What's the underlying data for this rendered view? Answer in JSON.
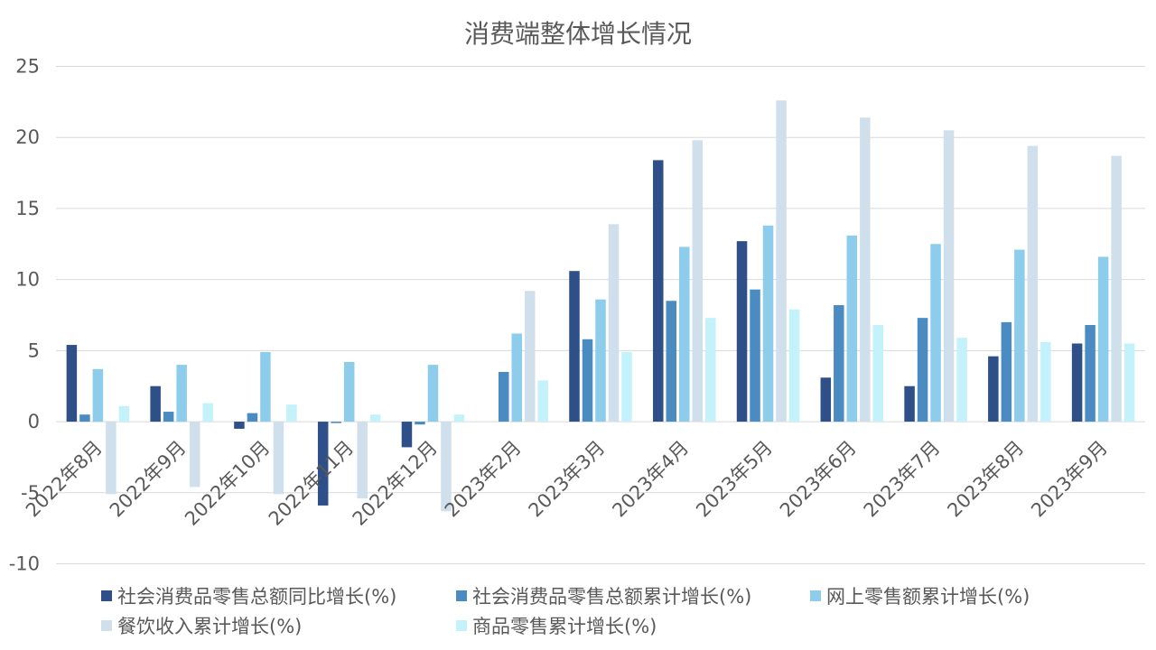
{
  "chart_data": {
    "type": "bar",
    "title": "消费端整体增长情况",
    "categories": [
      "2022年8月",
      "2022年9月",
      "2022年10月",
      "2022年11月",
      "2022年12月",
      "2023年2月",
      "2023年3月",
      "2023年4月",
      "2023年5月",
      "2023年6月",
      "2023年7月",
      "2023年8月",
      "2023年9月"
    ],
    "series": [
      {
        "name": "社会消费品零售总额同比增长(%)",
        "color": "#2f4f88",
        "values": [
          5.4,
          2.5,
          -0.5,
          -5.9,
          -1.8,
          null,
          10.6,
          18.4,
          12.7,
          3.1,
          2.5,
          4.6,
          5.5
        ]
      },
      {
        "name": "社会消费品零售总额累计增长(%)",
        "color": "#4a8bc2",
        "values": [
          0.5,
          0.7,
          0.6,
          -0.1,
          -0.2,
          3.5,
          5.8,
          8.5,
          9.3,
          8.2,
          7.3,
          7.0,
          6.8
        ]
      },
      {
        "name": "网上零售额累计增长(%)",
        "color": "#8dcdeb",
        "values": [
          3.7,
          4.0,
          4.9,
          4.2,
          4.0,
          6.2,
          8.6,
          12.3,
          13.8,
          13.1,
          12.5,
          12.1,
          11.6
        ]
      },
      {
        "name": "餐饮收入累计增长(%)",
        "color": "#cfe0ec",
        "values": [
          -5.1,
          -4.6,
          -5.1,
          -5.4,
          -6.3,
          9.2,
          13.9,
          19.8,
          22.6,
          21.4,
          20.5,
          19.4,
          18.7
        ]
      },
      {
        "name": "商品零售累计增长(%)",
        "color": "#c4f2fa",
        "values": [
          1.1,
          1.3,
          1.2,
          0.5,
          0.5,
          2.9,
          4.9,
          7.3,
          7.9,
          6.8,
          5.9,
          5.6,
          5.5
        ]
      }
    ],
    "ylim": [
      -10,
      25
    ],
    "yticks": [
      -10,
      -5,
      0,
      5,
      10,
      15,
      20,
      25
    ],
    "grid": true,
    "legend_position": "bottom"
  }
}
